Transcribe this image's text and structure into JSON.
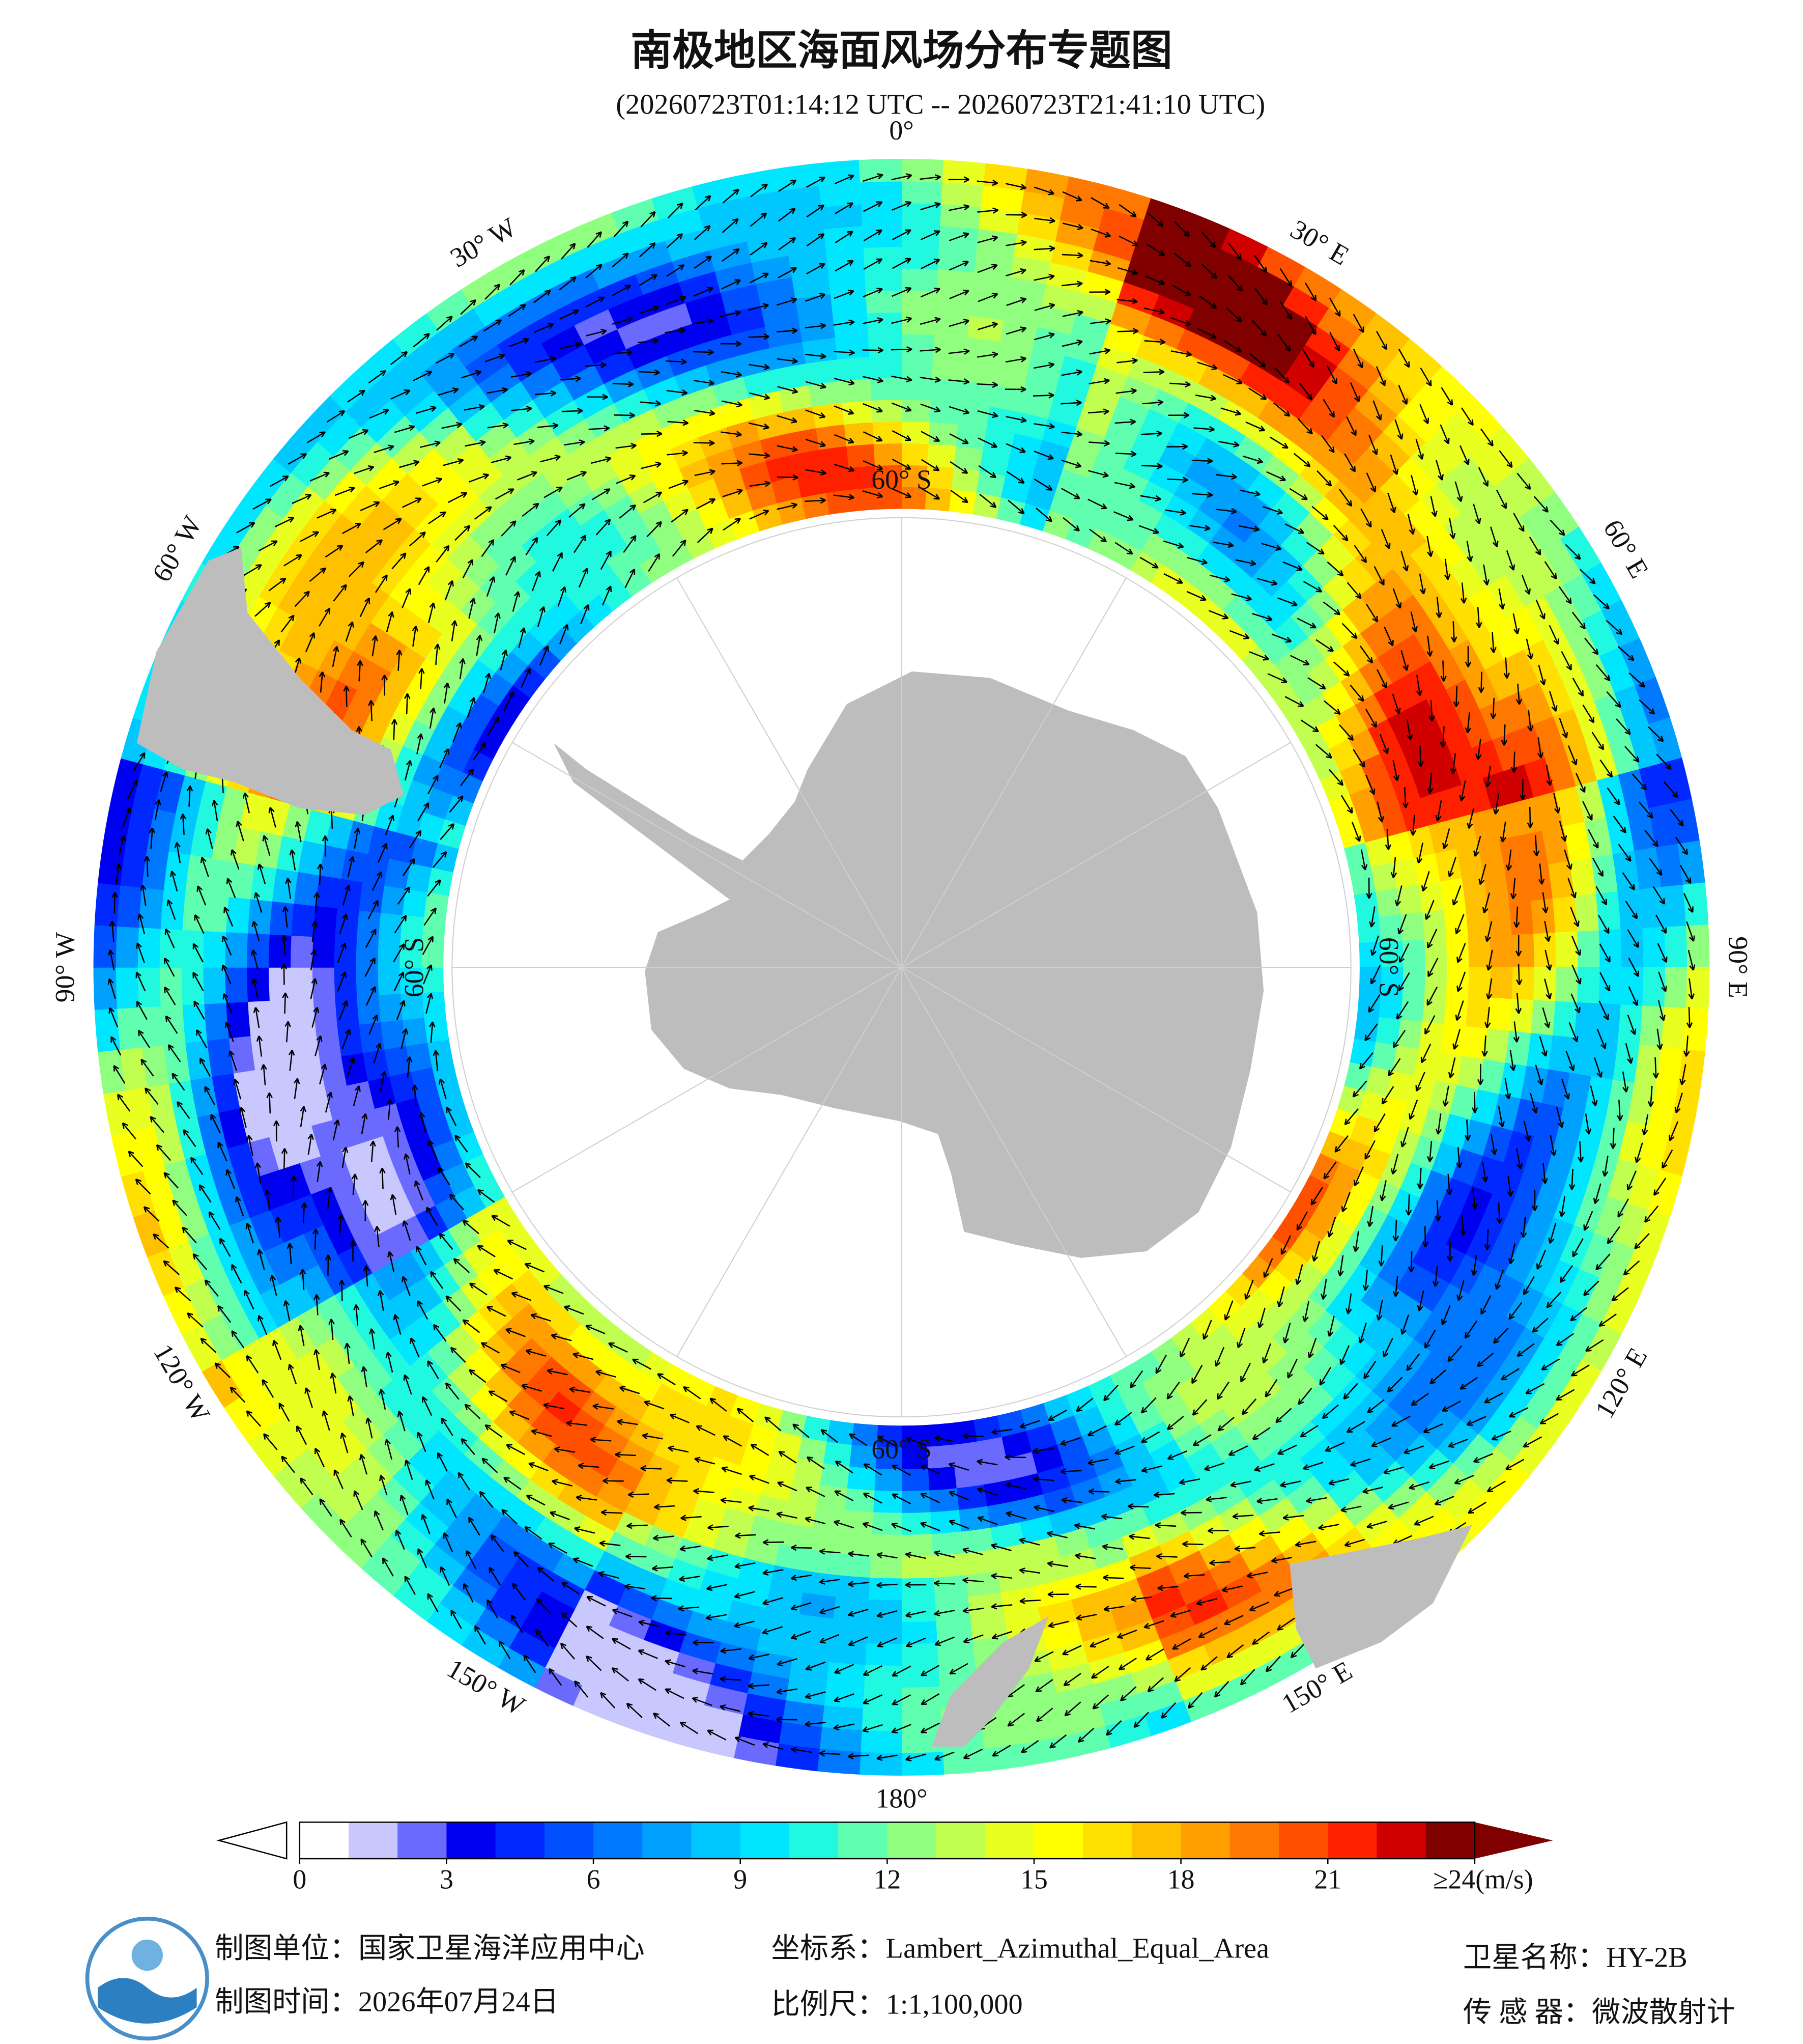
{
  "header": {
    "title": "南极地区海面风场分布专题图",
    "subtitle": "(20260723T01:14:12 UTC -- 20260723T21:41:10 UTC)"
  },
  "map": {
    "longitude_labels": [
      "0°",
      "30° E",
      "60° E",
      "90° E",
      "120° E",
      "150° E",
      "180°",
      "150° W",
      "120° W",
      "90° W",
      "60° W",
      "30° W"
    ],
    "latitude_labels": [
      "60° S",
      "60° S",
      "60° S",
      "60° S"
    ]
  },
  "colorbar": {
    "range": [
      0,
      24
    ],
    "ticks": [
      0,
      3,
      6,
      9,
      12,
      15,
      18,
      21,
      {
        "value": 24,
        "label": "≥24(m/s)"
      }
    ],
    "colors": [
      "#ffffff",
      "#c8c8ff",
      "#6a6aff",
      "#0000f0",
      "#0028ff",
      "#0050ff",
      "#0078ff",
      "#00a0ff",
      "#00c8ff",
      "#00e6ff",
      "#20f8e0",
      "#60ffb0",
      "#90ff80",
      "#c0ff50",
      "#e8ff20",
      "#ffff00",
      "#ffe000",
      "#ffc000",
      "#ffa000",
      "#ff7800",
      "#ff5000",
      "#ff2000",
      "#d00000",
      "#800000"
    ]
  },
  "footer": {
    "producer": "制图单位：国家卫星海洋应用中心",
    "date": "制图时间：2026年07月24日",
    "crs": "坐标系：Lambert_Azimuthal_Equal_Area",
    "scale": "比例尺：1:1,100,000",
    "satellite": "卫星名称：HY-2B",
    "sensor": "传 感 器：微波散射计"
  }
}
